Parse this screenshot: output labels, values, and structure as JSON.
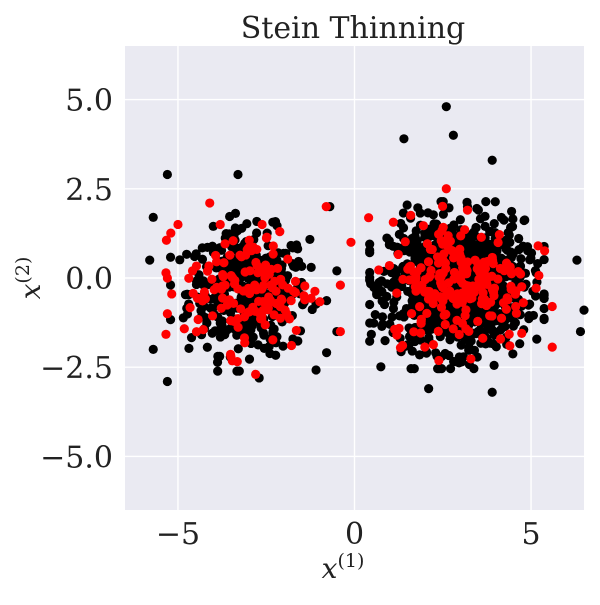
{
  "chart_data": {
    "type": "scatter",
    "title": "Stein Thinning",
    "xlabel": "x",
    "xlabel_sup": "(1)",
    "ylabel": "x",
    "ylabel_sup": "(2)",
    "xlim": [
      -6.5,
      6.5
    ],
    "ylim": [
      -6.5,
      6.5
    ],
    "xticks": [
      -5,
      0,
      5
    ],
    "xtick_labels": [
      "−5",
      "0",
      "5"
    ],
    "yticks": [
      5.0,
      2.5,
      0.0,
      -2.5,
      -5.0
    ],
    "ytick_labels": [
      "5.0",
      "2.5",
      "0.0",
      "−2.5",
      "−5.0"
    ],
    "grid": true,
    "background_color": "#eaeaf2",
    "series": [
      {
        "color": "#000000",
        "clusters": [
          {
            "center": [
              -3.0,
              -0.4
            ],
            "spread": [
              0.85,
              0.85
            ],
            "count": 420
          },
          {
            "center": [
              2.9,
              -0.2
            ],
            "spread": [
              0.95,
              0.9
            ],
            "count": 1150
          }
        ],
        "extra_points": [
          [
            -5.3,
            2.9
          ],
          [
            -5.8,
            0.5
          ],
          [
            -5.7,
            -2.0
          ],
          [
            -5.3,
            -2.9
          ],
          [
            -5.7,
            1.7
          ],
          [
            -2.7,
            -2.8
          ],
          [
            -3.3,
            2.9
          ],
          [
            -0.7,
            2.0
          ],
          [
            -0.5,
            0.2
          ],
          [
            -0.5,
            -1.5
          ],
          [
            2.6,
            4.8
          ],
          [
            2.8,
            4.0
          ],
          [
            1.4,
            3.9
          ],
          [
            3.9,
            3.3
          ],
          [
            6.5,
            -0.9
          ],
          [
            6.4,
            -1.5
          ],
          [
            2.1,
            -3.1
          ],
          [
            3.9,
            -3.2
          ],
          [
            6.3,
            0.5
          ],
          [
            0.8,
            -1.3
          ]
        ]
      },
      {
        "color": "#ff0000",
        "clusters": [
          {
            "center": [
              -3.0,
              -0.3
            ],
            "spread": [
              0.9,
              0.85
            ],
            "count": 140
          },
          {
            "center": [
              3.0,
              -0.1
            ],
            "spread": [
              1.0,
              0.85
            ],
            "count": 210
          }
        ],
        "extra_points": [
          [
            -0.8,
            2.0
          ],
          [
            -0.1,
            1.0
          ],
          [
            -0.4,
            -0.2
          ],
          [
            -0.4,
            -1.5
          ],
          [
            -5.3,
            -1.0
          ],
          [
            -3.5,
            -2.2
          ],
          [
            -2.8,
            -2.7
          ],
          [
            -4.1,
            2.1
          ],
          [
            4.4,
            -1.9
          ],
          [
            5.2,
            0.9
          ],
          [
            2.6,
            2.5
          ],
          [
            3.2,
            1.9
          ],
          [
            1.2,
            -1.6
          ],
          [
            -5.3,
            0.0
          ],
          [
            -5.0,
            1.5
          ]
        ]
      }
    ]
  }
}
